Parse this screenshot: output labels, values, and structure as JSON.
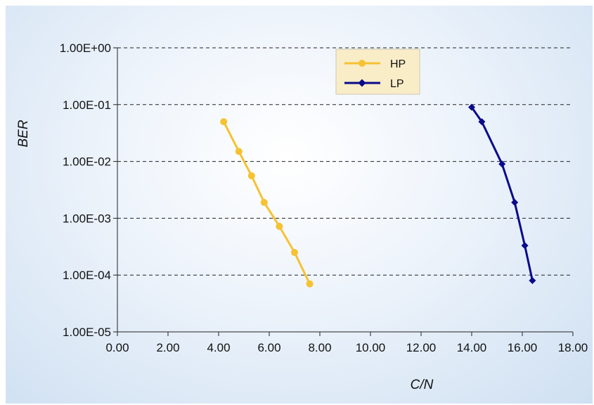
{
  "chart_data": {
    "type": "line",
    "title": "",
    "xlabel": "C/N",
    "ylabel": "BER",
    "xlim": [
      0,
      18
    ],
    "ylim": [
      1e-05,
      1
    ],
    "yscale": "log",
    "x_ticks": [
      0,
      2,
      4,
      6,
      8,
      10,
      12,
      14,
      16,
      18
    ],
    "x_tick_labels": [
      "0.00",
      "2.00",
      "4.00",
      "6.00",
      "8.00",
      "10.00",
      "12.00",
      "14.00",
      "16.00",
      "18.00"
    ],
    "y_ticks": [
      1,
      0.1,
      0.01,
      0.001,
      0.0001,
      1e-05
    ],
    "y_tick_labels": [
      "1.00E+00",
      "1.00E-01",
      "1.00E-02",
      "1.00E-03",
      "1.00E-04",
      "1.00E-05"
    ],
    "grid": "horizontal dashed",
    "legend_position": "top-center",
    "series": [
      {
        "name": "HP",
        "color": "#f5c232",
        "marker": "circle",
        "x": [
          4.2,
          4.8,
          5.3,
          5.8,
          6.4,
          7.0,
          7.6
        ],
        "y": [
          0.05,
          0.015,
          0.0056,
          0.0019,
          0.00072,
          0.00025,
          7e-05
        ]
      },
      {
        "name": "LP",
        "color": "#0a0a8a",
        "marker": "diamond",
        "x": [
          14.0,
          14.4,
          15.2,
          15.7,
          16.1,
          16.4
        ],
        "y": [
          0.09,
          0.05,
          0.009,
          0.0019,
          0.00033,
          8e-05
        ]
      }
    ]
  }
}
